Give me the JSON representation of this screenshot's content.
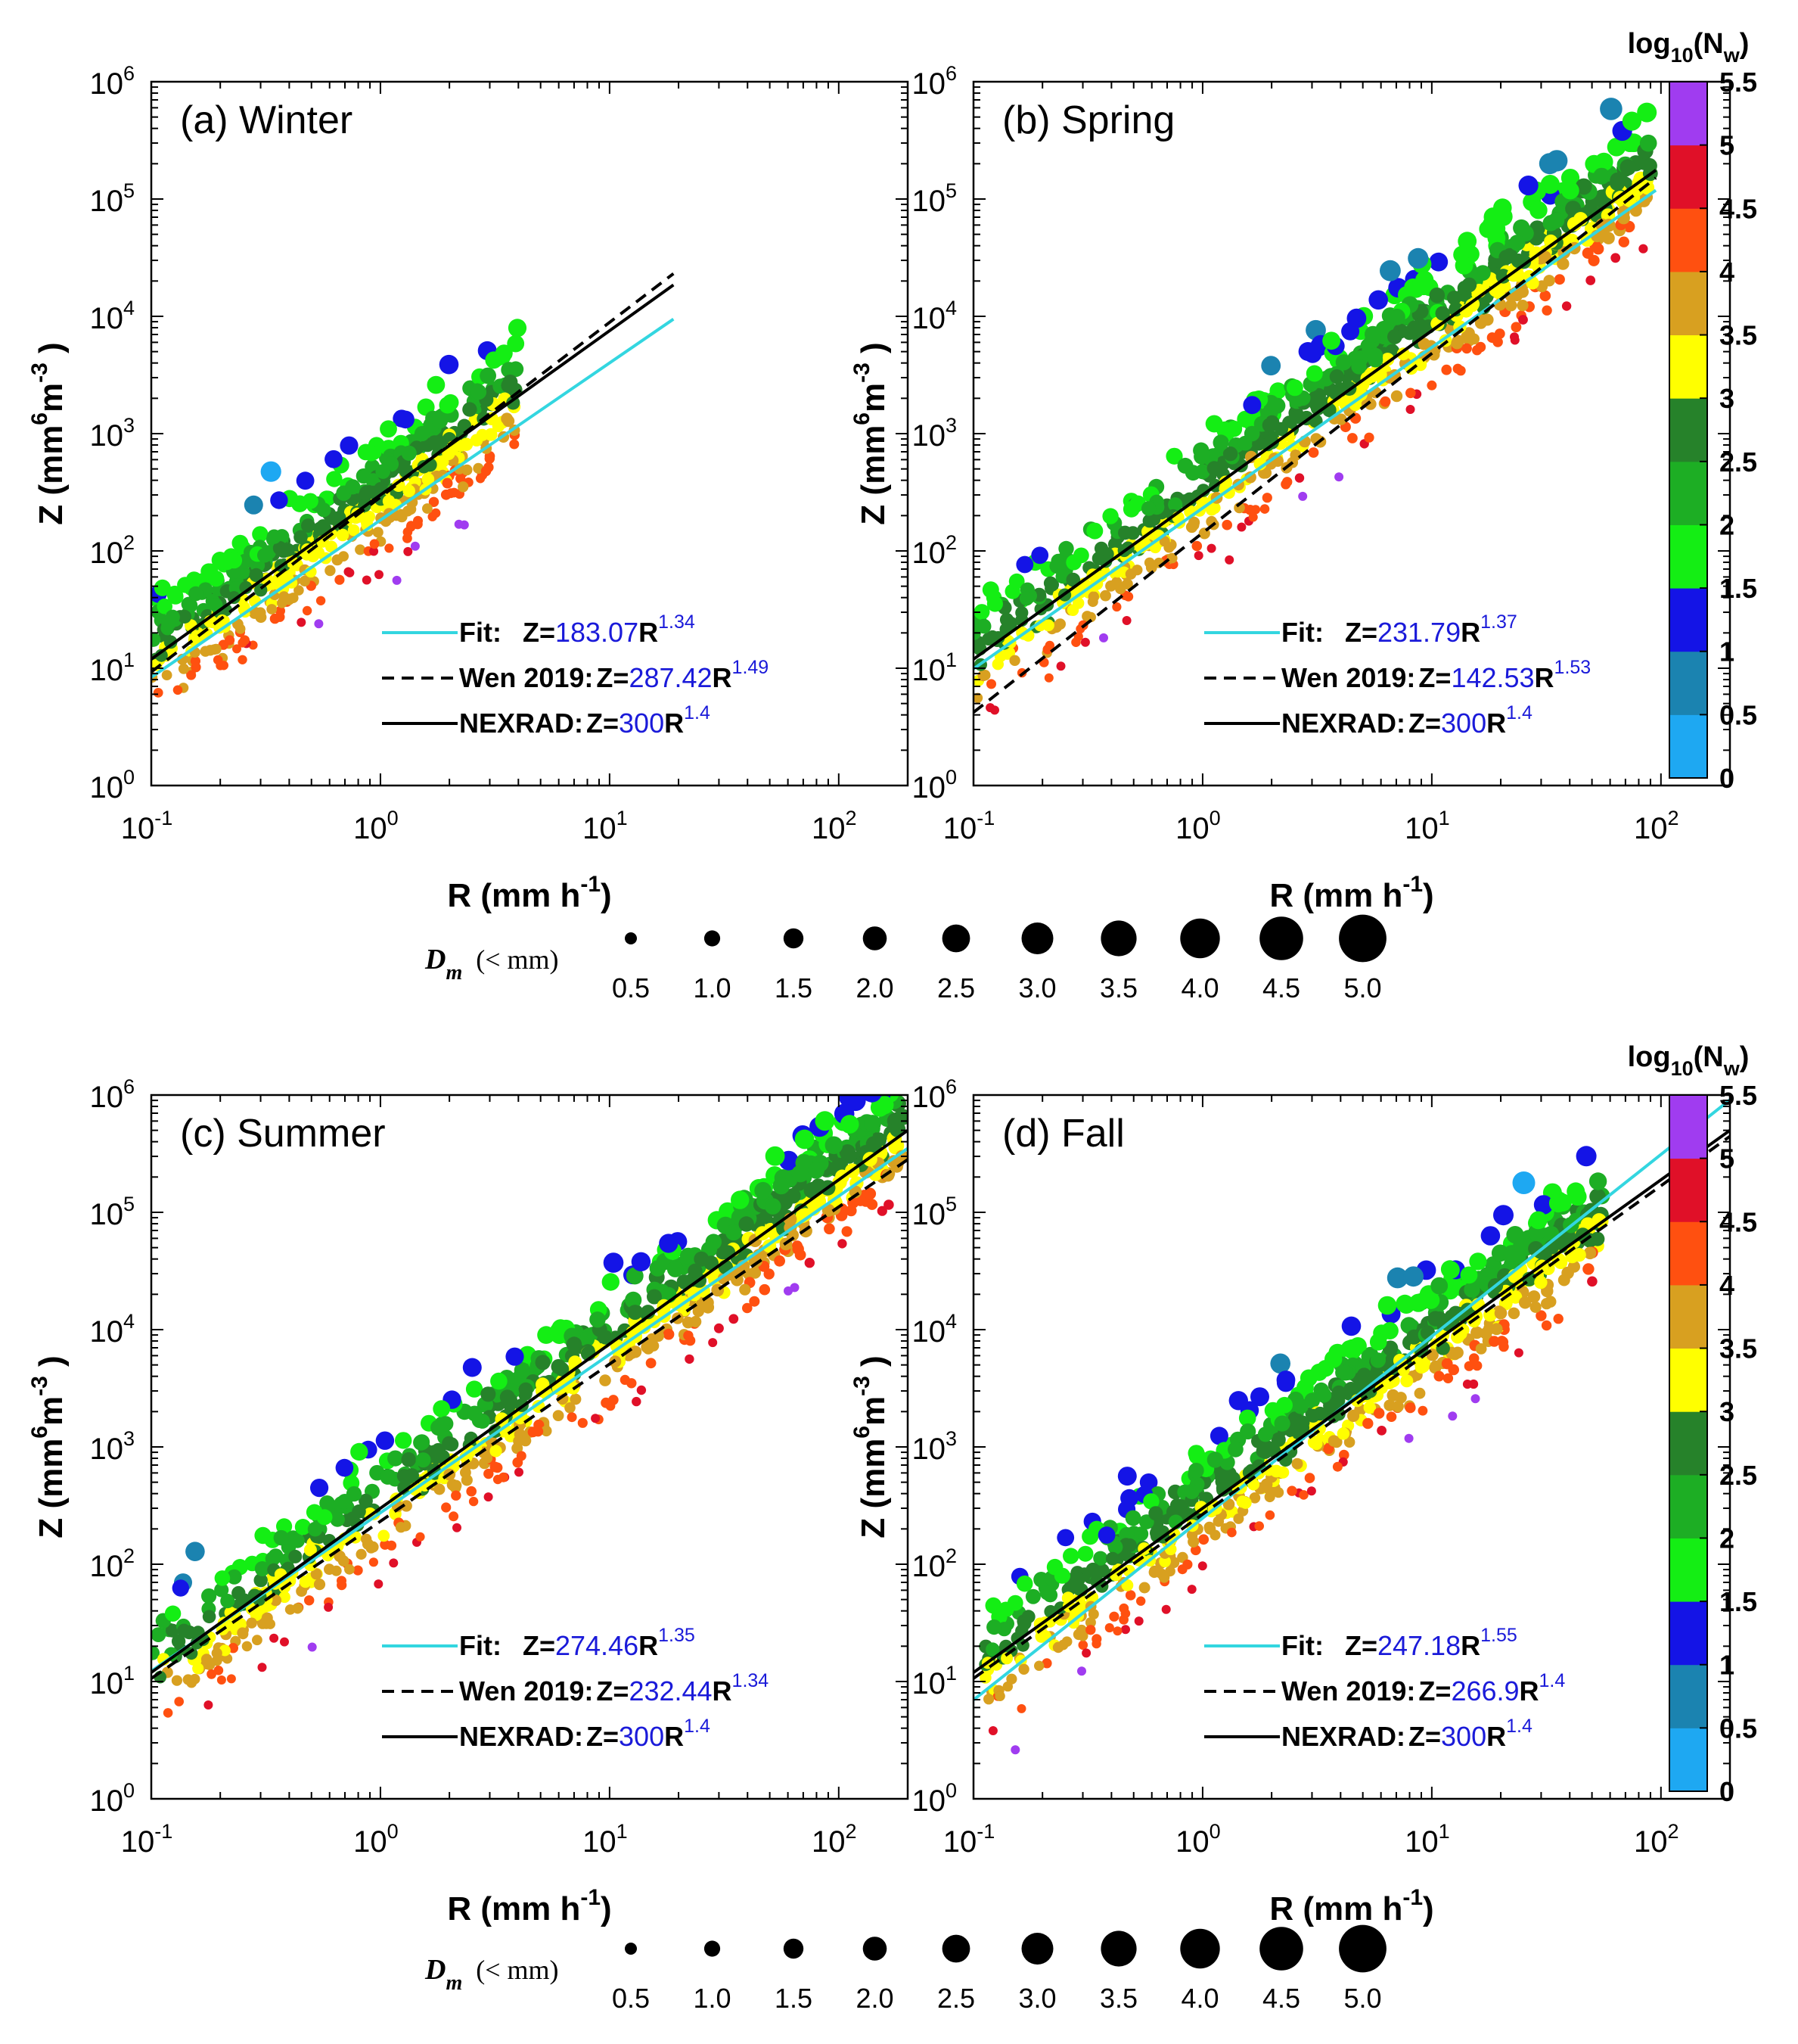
{
  "colors": {
    "fit": "#33d6e0",
    "equation_value": "#1a1ad9",
    "axis": "#000000",
    "colorbar": [
      "#1ea8f2",
      "#1b83b0",
      "#1414e6",
      "#14ee14",
      "#1dae24",
      "#26822a",
      "#ffff00",
      "#d8a020",
      "#ff5010",
      "#e01028",
      "#a03cf0"
    ]
  },
  "colorbar": {
    "label_main": "log",
    "label_sub": "10",
    "label_open": "(N",
    "label_w": "w",
    "label_close": ")",
    "ticks": [
      "0",
      "0.5",
      "1",
      "1.5",
      "2",
      "2.5",
      "3",
      "3.5",
      "4",
      "4.5",
      "5",
      "5.5"
    ],
    "range": [
      0,
      5.5
    ]
  },
  "size_legend": {
    "label_main": "D",
    "label_sub": "m",
    "label_unit": "(< mm)",
    "values": [
      "0.5",
      "1.0",
      "1.5",
      "2.0",
      "2.5",
      "3.0",
      "3.5",
      "4.0",
      "4.5",
      "5.0"
    ]
  },
  "axes": {
    "x_label_main": "R (mm h",
    "x_label_sup": "-1",
    "x_label_close": ")",
    "y_label_main": "Z (mm",
    "y_label_sup1": "6",
    "y_label_mid": "m",
    "y_label_sup2": "-3",
    "y_label_close": " )",
    "x_ticks": [
      {
        "base": "10",
        "exp": "-1"
      },
      {
        "base": "10",
        "exp": "0"
      },
      {
        "base": "10",
        "exp": "1"
      },
      {
        "base": "10",
        "exp": "2"
      }
    ],
    "y_ticks": [
      {
        "base": "10",
        "exp": "0"
      },
      {
        "base": "10",
        "exp": "1"
      },
      {
        "base": "10",
        "exp": "2"
      },
      {
        "base": "10",
        "exp": "3"
      },
      {
        "base": "10",
        "exp": "4"
      },
      {
        "base": "10",
        "exp": "5"
      },
      {
        "base": "10",
        "exp": "6"
      }
    ]
  },
  "chart_data": [
    {
      "type": "scatter",
      "title": "(a) Winter",
      "xscale": "log",
      "yscale": "log",
      "xlim": [
        0.1,
        200
      ],
      "ylim": [
        1,
        1000000
      ],
      "xlabel": "R (mm h-1)",
      "ylabel": "Z (mm6 m-3)",
      "scatter_extent": {
        "rmin": 0.1,
        "rmax": 4
      },
      "lines": [
        {
          "name": "Fit",
          "style": "solid",
          "color": "fit",
          "a": 183.07,
          "b": 1.34,
          "xmax": 19,
          "lead": "Fit:",
          "eq": "Z=",
          "a_text": "183.07",
          "b_text": "1.34"
        },
        {
          "name": "Wen 2019",
          "style": "dashed",
          "color": "black",
          "a": 287.42,
          "b": 1.49,
          "xmax": 19,
          "lead": "Wen 2019:",
          "eq": "Z=",
          "a_text": "287.42",
          "b_text": "1.49"
        },
        {
          "name": "NEXRAD",
          "style": "solid",
          "color": "black",
          "a": 300,
          "b": 1.4,
          "xmax": 19,
          "lead": "NEXRAD:",
          "eq": "Z=",
          "a_text": "300",
          "b_text": "1.4"
        }
      ]
    },
    {
      "type": "scatter",
      "title": "(b) Spring",
      "xscale": "log",
      "yscale": "log",
      "xlim": [
        0.1,
        200
      ],
      "ylim": [
        1,
        1000000
      ],
      "xlabel": "R (mm h-1)",
      "ylabel": "Z (mm6 m-3)",
      "scatter_extent": {
        "rmin": 0.1,
        "rmax": 90
      },
      "lines": [
        {
          "name": "Fit",
          "style": "solid",
          "color": "fit",
          "a": 231.79,
          "b": 1.37,
          "xmax": 95,
          "lead": "Fit:",
          "eq": "Z=",
          "a_text": "231.79",
          "b_text": "1.37"
        },
        {
          "name": "Wen 2019",
          "style": "dashed",
          "color": "black",
          "a": 142.53,
          "b": 1.53,
          "xmax": 95,
          "lead": "Wen 2019:",
          "eq": "Z=",
          "a_text": "142.53",
          "b_text": "1.53"
        },
        {
          "name": "NEXRAD",
          "style": "solid",
          "color": "black",
          "a": 300,
          "b": 1.4,
          "xmax": 95,
          "lead": "NEXRAD:",
          "eq": "Z=",
          "a_text": "300",
          "b_text": "1.4"
        }
      ]
    },
    {
      "type": "scatter",
      "title": "(c) Summer",
      "xscale": "log",
      "yscale": "log",
      "xlim": [
        0.1,
        200
      ],
      "ylim": [
        1,
        1000000
      ],
      "xlabel": "R (mm h-1)",
      "ylabel": "Z (mm6 m-3)",
      "scatter_extent": {
        "rmin": 0.1,
        "rmax": 190
      },
      "lines": [
        {
          "name": "Fit",
          "style": "solid",
          "color": "fit",
          "a": 274.46,
          "b": 1.35,
          "xmax": 200,
          "lead": "Fit:",
          "eq": "Z=",
          "a_text": "274.46",
          "b_text": "1.35"
        },
        {
          "name": "Wen 2019",
          "style": "dashed",
          "color": "black",
          "a": 232.44,
          "b": 1.34,
          "xmax": 200,
          "lead": "Wen 2019:",
          "eq": "Z=",
          "a_text": "232.44",
          "b_text": "1.34"
        },
        {
          "name": "NEXRAD",
          "style": "solid",
          "color": "black",
          "a": 300,
          "b": 1.4,
          "xmax": 200,
          "lead": "NEXRAD:",
          "eq": "Z=",
          "a_text": "300",
          "b_text": "1.4"
        }
      ]
    },
    {
      "type": "scatter",
      "title": "(d) Fall",
      "xscale": "log",
      "yscale": "log",
      "xlim": [
        0.1,
        200
      ],
      "ylim": [
        1,
        1000000
      ],
      "xlabel": "R (mm h-1)",
      "ylabel": "Z (mm6 m-3)",
      "scatter_extent": {
        "rmin": 0.1,
        "rmax": 55
      },
      "lines": [
        {
          "name": "Fit",
          "style": "solid",
          "color": "fit",
          "a": 247.18,
          "b": 1.55,
          "xmax": 200,
          "lead": "Fit:",
          "eq": "Z=",
          "a_text": "247.18",
          "b_text": "1.55"
        },
        {
          "name": "Wen 2019",
          "style": "dashed",
          "color": "black",
          "a": 266.9,
          "b": 1.4,
          "xmax": 200,
          "lead": "Wen 2019:",
          "eq": "Z=",
          "a_text": "266.9",
          "b_text": "1.4"
        },
        {
          "name": "NEXRAD",
          "style": "solid",
          "color": "black",
          "a": 300,
          "b": 1.4,
          "xmax": 200,
          "lead": "NEXRAD:",
          "eq": "Z=",
          "a_text": "300",
          "b_text": "1.4"
        }
      ]
    }
  ]
}
